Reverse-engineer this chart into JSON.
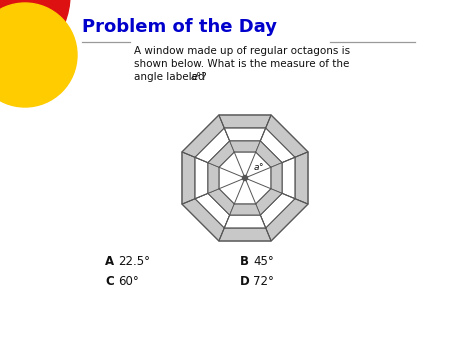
{
  "title": "Problem of the Day",
  "title_color": "#0000cc",
  "title_fontsize": 13,
  "title_fontweight": "bold",
  "problem_text_line1": "A window made up of regular octagons is",
  "problem_text_line2": "shown below. What is the measure of the",
  "problem_text_line3": "angle labeled ",
  "bg_color": "#ffffff",
  "decor_red": "#dd1111",
  "decor_yellow": "#ffcc00",
  "octagon_gray": "#c8c8c8",
  "octagon_white": "#ffffff",
  "octagon_line": "#555555",
  "sep_line": "#999999",
  "text_color": "#111111"
}
